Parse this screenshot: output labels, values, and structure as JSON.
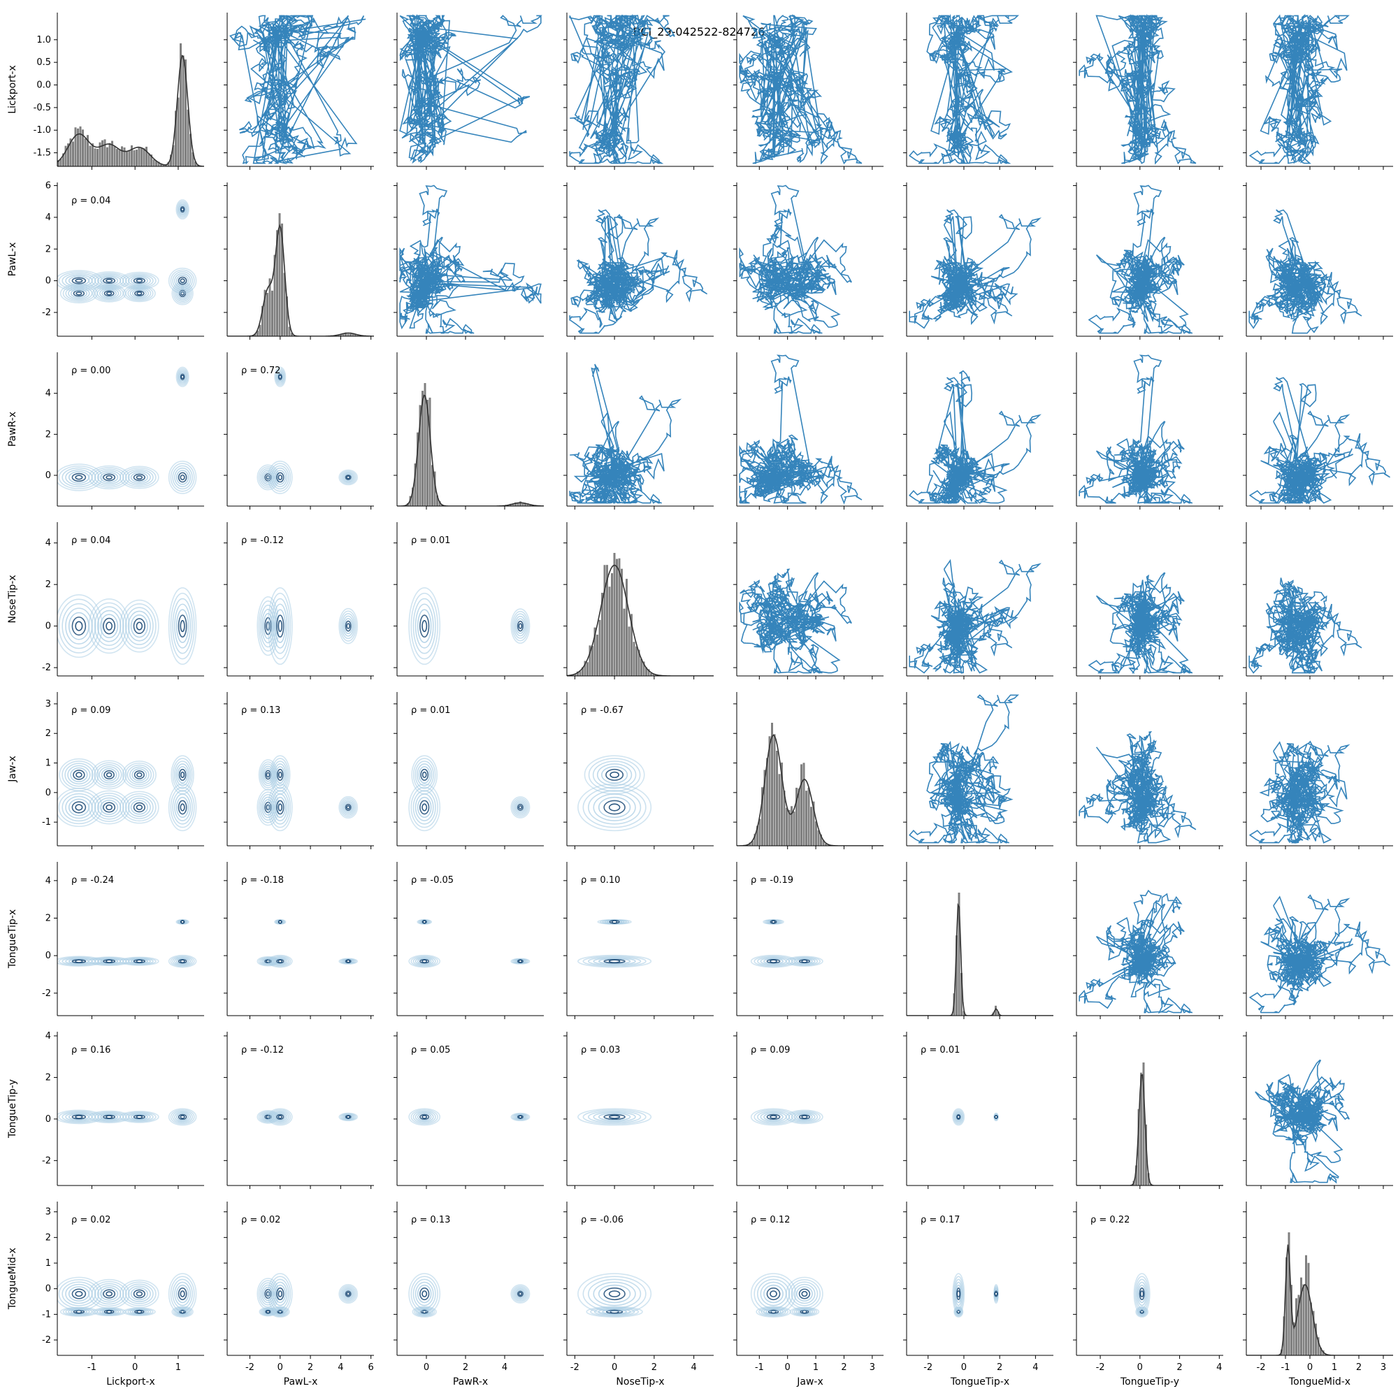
{
  "chart_data": {
    "type": "pairplot",
    "title": "BCI_29-042522-824726",
    "variables": [
      "Lickport-x",
      "PawL-x",
      "PawR-x",
      "NoseTip-x",
      "Jaw-x",
      "TongueTip-x",
      "TongueTip-y",
      "TongueMid-x"
    ],
    "upper_kind": "line trajectories",
    "diagonal_kind": "histogram with kde",
    "lower_kind": "kde contours",
    "series_color": "#1f77b4",
    "hist_color": "#555555",
    "kde_color_light": "#a6cbe3",
    "kde_color_dark": "#1f4e79",
    "ranges": [
      {
        "var": "Lickport-x",
        "lim": [
          -1.8,
          1.6
        ],
        "xticks": [
          "-1",
          "0",
          "1"
        ],
        "xtick_values": [
          -1,
          0,
          1
        ],
        "yticks": [
          "-1.5",
          "-1.0",
          "-0.5",
          "0.0",
          "0.5",
          "1.0"
        ],
        "ytick_values": [
          -1.5,
          -1.0,
          -0.5,
          0.0,
          0.5,
          1.0
        ]
      },
      {
        "var": "PawL-x",
        "lim": [
          -3.5,
          6.2
        ],
        "ticks": [
          "-2",
          "0",
          "2",
          "4",
          "6"
        ],
        "tick_values": [
          -2,
          0,
          2,
          4,
          6
        ]
      },
      {
        "var": "PawR-x",
        "lim": [
          -1.5,
          6.0
        ],
        "ticks": [
          "0",
          "2",
          "4"
        ],
        "tick_values": [
          0,
          2,
          4
        ]
      },
      {
        "var": "NoseTip-x",
        "lim": [
          -2.4,
          5.0
        ],
        "ticks": [
          "-2",
          "0",
          "2",
          "4"
        ],
        "tick_values": [
          -2,
          0,
          2,
          4
        ]
      },
      {
        "var": "Jaw-x",
        "lim": [
          -1.8,
          3.4
        ],
        "ticks": [
          "-1",
          "0",
          "1",
          "2",
          "3"
        ],
        "tick_values": [
          -1,
          0,
          1,
          2,
          3
        ]
      },
      {
        "var": "TongueTip-x",
        "lim": [
          -3.2,
          5.0
        ],
        "ticks": [
          "-2",
          "0",
          "2",
          "4"
        ],
        "tick_values": [
          -2,
          0,
          2,
          4
        ]
      },
      {
        "var": "TongueTip-y",
        "lim": [
          -3.2,
          4.2
        ],
        "ticks": [
          "-2",
          "0",
          "2",
          "4"
        ],
        "tick_values": [
          -2,
          0,
          2,
          4
        ]
      },
      {
        "var": "TongueMid-x",
        "lim": [
          -2.6,
          3.4
        ],
        "ticks": [
          "-2",
          "-1",
          "0",
          "1",
          "2",
          "3"
        ],
        "tick_values": [
          -2,
          -1,
          0,
          1,
          2,
          3
        ]
      }
    ],
    "rho_prefix": "ρ = ",
    "correlations": [
      {
        "row": "PawL-x",
        "col": "Lickport-x",
        "rho": "0.04"
      },
      {
        "row": "PawR-x",
        "col": "Lickport-x",
        "rho": "0.00"
      },
      {
        "row": "PawR-x",
        "col": "PawL-x",
        "rho": "0.72"
      },
      {
        "row": "NoseTip-x",
        "col": "Lickport-x",
        "rho": "0.04"
      },
      {
        "row": "NoseTip-x",
        "col": "PawL-x",
        "rho": "-0.12"
      },
      {
        "row": "NoseTip-x",
        "col": "PawR-x",
        "rho": "0.01"
      },
      {
        "row": "Jaw-x",
        "col": "Lickport-x",
        "rho": "0.09"
      },
      {
        "row": "Jaw-x",
        "col": "PawL-x",
        "rho": "0.13"
      },
      {
        "row": "Jaw-x",
        "col": "PawR-x",
        "rho": "0.01"
      },
      {
        "row": "Jaw-x",
        "col": "NoseTip-x",
        "rho": "-0.67"
      },
      {
        "row": "TongueTip-x",
        "col": "Lickport-x",
        "rho": "-0.24"
      },
      {
        "row": "TongueTip-x",
        "col": "PawL-x",
        "rho": "-0.18"
      },
      {
        "row": "TongueTip-x",
        "col": "PawR-x",
        "rho": "-0.05"
      },
      {
        "row": "TongueTip-x",
        "col": "NoseTip-x",
        "rho": "0.10"
      },
      {
        "row": "TongueTip-x",
        "col": "Jaw-x",
        "rho": "-0.19"
      },
      {
        "row": "TongueTip-y",
        "col": "Lickport-x",
        "rho": "0.16"
      },
      {
        "row": "TongueTip-y",
        "col": "PawL-x",
        "rho": "-0.12"
      },
      {
        "row": "TongueTip-y",
        "col": "PawR-x",
        "rho": "0.05"
      },
      {
        "row": "TongueTip-y",
        "col": "NoseTip-x",
        "rho": "0.03"
      },
      {
        "row": "TongueTip-y",
        "col": "Jaw-x",
        "rho": "0.09"
      },
      {
        "row": "TongueTip-y",
        "col": "TongueTip-x",
        "rho": "0.01"
      },
      {
        "row": "TongueMid-x",
        "col": "Lickport-x",
        "rho": "0.02"
      },
      {
        "row": "TongueMid-x",
        "col": "PawL-x",
        "rho": "0.02"
      },
      {
        "row": "TongueMid-x",
        "col": "PawR-x",
        "rho": "0.13"
      },
      {
        "row": "TongueMid-x",
        "col": "NoseTip-x",
        "rho": "-0.06"
      },
      {
        "row": "TongueMid-x",
        "col": "Jaw-x",
        "rho": "0.12"
      },
      {
        "row": "TongueMid-x",
        "col": "TongueTip-x",
        "rho": "0.17"
      },
      {
        "row": "TongueMid-x",
        "col": "TongueTip-y",
        "rho": "0.22"
      }
    ],
    "centers": [
      {
        "var": "Lickport-x",
        "modes": [
          -1.3,
          -0.6,
          0.1,
          1.1
        ],
        "weights": [
          0.6,
          0.4,
          0.35,
          1.0
        ],
        "sd": [
          0.25,
          0.25,
          0.25,
          0.12
        ]
      },
      {
        "var": "PawL-x",
        "modes": [
          -0.8,
          0.0,
          4.5
        ],
        "weights": [
          0.5,
          1.0,
          0.05
        ],
        "sd": [
          0.35,
          0.3,
          0.5
        ]
      },
      {
        "var": "PawR-x",
        "modes": [
          -0.1,
          4.8
        ],
        "weights": [
          1.0,
          0.04
        ],
        "sd": [
          0.3,
          0.4
        ]
      },
      {
        "var": "NoseTip-x",
        "modes": [
          0.0
        ],
        "weights": [
          1.0
        ],
        "sd": [
          0.7
        ]
      },
      {
        "var": "Jaw-x",
        "modes": [
          -0.5,
          0.6
        ],
        "weights": [
          1.0,
          0.6
        ],
        "sd": [
          0.3,
          0.3
        ]
      },
      {
        "var": "TongueTip-x",
        "modes": [
          -0.3,
          1.8
        ],
        "weights": [
          1.0,
          0.05
        ],
        "sd": [
          0.12,
          0.1
        ]
      },
      {
        "var": "TongueTip-y",
        "modes": [
          0.1
        ],
        "weights": [
          1.0
        ],
        "sd": [
          0.15
        ]
      },
      {
        "var": "TongueMid-x",
        "modes": [
          -0.9,
          -0.2
        ],
        "weights": [
          0.5,
          1.0
        ],
        "sd": [
          0.1,
          0.3
        ]
      }
    ]
  }
}
